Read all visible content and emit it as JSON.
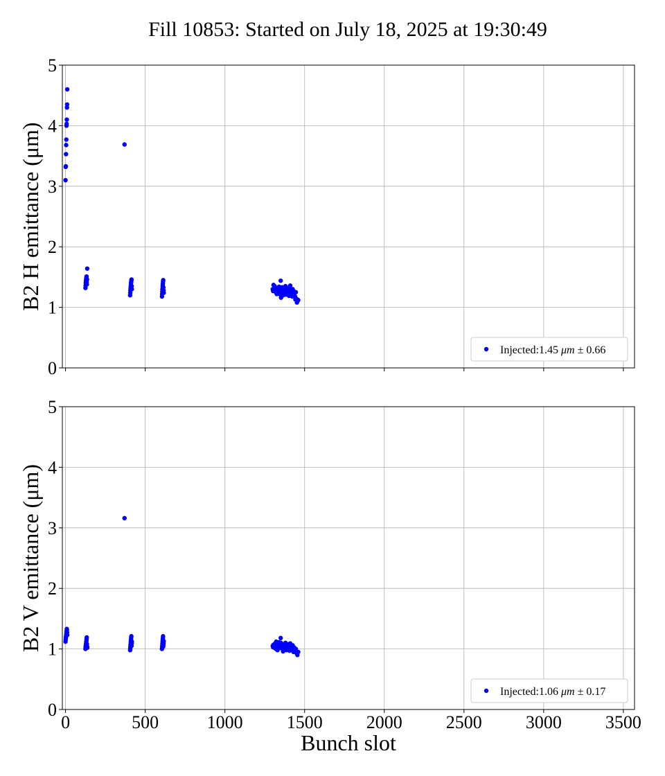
{
  "chart_data": {
    "type": "scatter",
    "title": "Fill 10853: Started on July 18, 2025 at 19:30:49",
    "xlabel": "Bunch slot",
    "xlim": [
      -20,
      3570
    ],
    "xticks": [
      0,
      500,
      1000,
      1500,
      2000,
      2500,
      3000,
      3500
    ],
    "point_color": "#0000ff",
    "panels": [
      {
        "ylabel": "B2 H emittance (μm)",
        "ylim": [
          0,
          5
        ],
        "yticks": [
          0,
          1,
          2,
          3,
          4,
          5
        ],
        "legend": {
          "label_prefix": "Injected:",
          "mean": "1.45",
          "unit": "μm",
          "pm": "±",
          "std": "0.66",
          "position": "lower right"
        },
        "series": [
          {
            "x": [
              0,
              1,
              2,
              3,
              4,
              5,
              6,
              7,
              8,
              9,
              10,
              11,
              125,
              126,
              127,
              128,
              129,
              130,
              131,
              132,
              133,
              134,
              135,
              136,
              370,
              405,
              406,
              407,
              408,
              409,
              410,
              411,
              412,
              413,
              414,
              415,
              416,
              605,
              606,
              607,
              608,
              609,
              610,
              611,
              612,
              613,
              614,
              615,
              616,
              1300,
              1305,
              1310,
              1315,
              1320,
              1325,
              1330,
              1335,
              1340,
              1345,
              1350,
              1355,
              1360,
              1365,
              1370,
              1375,
              1380,
              1385,
              1390,
              1395,
              1400,
              1405,
              1410,
              1415,
              1420,
              1425,
              1430,
              1435,
              1440,
              1445,
              1450,
              1455,
              1460,
              1302,
              1312,
              1322,
              1332,
              1342,
              1352,
              1362,
              1372,
              1382,
              1392,
              1402,
              1412,
              1422,
              1432,
              1442,
              1452
            ],
            "y": [
              3.1,
              3.32,
              3.33,
              3.53,
              3.68,
              3.77,
              4.0,
              4.03,
              4.1,
              4.3,
              4.35,
              4.6,
              1.32,
              1.36,
              1.4,
              1.43,
              1.45,
              1.47,
              1.49,
              1.51,
              1.42,
              1.38,
              1.46,
              1.64,
              3.69,
              1.2,
              1.24,
              1.28,
              1.31,
              1.34,
              1.37,
              1.4,
              1.42,
              1.44,
              1.46,
              1.35,
              1.3,
              1.18,
              1.22,
              1.26,
              1.3,
              1.34,
              1.37,
              1.4,
              1.43,
              1.45,
              1.33,
              1.28,
              1.24,
              1.3,
              1.37,
              1.28,
              1.33,
              1.25,
              1.22,
              1.3,
              1.27,
              1.34,
              1.31,
              1.44,
              1.26,
              1.33,
              1.2,
              1.29,
              1.25,
              1.35,
              1.22,
              1.3,
              1.27,
              1.32,
              1.24,
              1.36,
              1.21,
              1.28,
              1.3,
              1.23,
              1.26,
              1.18,
              1.25,
              1.14,
              1.1,
              1.12,
              1.27,
              1.35,
              1.3,
              1.24,
              1.22,
              1.16,
              1.28,
              1.31,
              1.21,
              1.26,
              1.19,
              1.29,
              1.18,
              1.22,
              1.13,
              1.08
            ]
          }
        ]
      },
      {
        "ylabel": "B2 V emittance (μm)",
        "ylim": [
          0,
          5
        ],
        "yticks": [
          0,
          1,
          2,
          3,
          4,
          5
        ],
        "legend": {
          "label_prefix": "Injected:",
          "mean": "1.06",
          "unit": "μm",
          "pm": "±",
          "std": "0.17",
          "position": "lower right"
        },
        "series": [
          {
            "x": [
              0,
              1,
              2,
              3,
              4,
              5,
              6,
              7,
              8,
              9,
              10,
              11,
              125,
              126,
              127,
              128,
              129,
              130,
              131,
              132,
              133,
              134,
              135,
              136,
              370,
              405,
              406,
              407,
              408,
              409,
              410,
              411,
              412,
              413,
              414,
              415,
              416,
              605,
              606,
              607,
              608,
              609,
              610,
              611,
              612,
              613,
              614,
              615,
              616,
              1300,
              1305,
              1310,
              1315,
              1320,
              1325,
              1330,
              1335,
              1340,
              1345,
              1350,
              1355,
              1360,
              1365,
              1370,
              1375,
              1380,
              1385,
              1390,
              1395,
              1400,
              1405,
              1410,
              1415,
              1420,
              1425,
              1430,
              1435,
              1440,
              1445,
              1450,
              1455,
              1460,
              1302,
              1312,
              1322,
              1332,
              1342,
              1352,
              1362,
              1372,
              1382,
              1392,
              1402,
              1412,
              1422,
              1432,
              1442,
              1452
            ],
            "y": [
              1.12,
              1.15,
              1.18,
              1.2,
              1.22,
              1.25,
              1.28,
              1.3,
              1.33,
              1.31,
              1.27,
              1.23,
              1.0,
              1.03,
              1.05,
              1.07,
              1.09,
              1.11,
              1.13,
              1.16,
              1.19,
              1.08,
              1.04,
              1.02,
              3.16,
              0.98,
              1.01,
              1.04,
              1.07,
              1.1,
              1.13,
              1.16,
              1.19,
              1.21,
              1.05,
              1.09,
              1.12,
              1.0,
              1.03,
              1.06,
              1.09,
              1.12,
              1.15,
              1.18,
              1.21,
              1.04,
              1.07,
              1.1,
              1.13,
              1.05,
              1.07,
              1.02,
              1.09,
              1.0,
              1.04,
              0.98,
              1.06,
              1.11,
              1.03,
              1.18,
              1.01,
              1.08,
              0.96,
              1.05,
              1.0,
              1.1,
              0.98,
              1.04,
              1.07,
              1.01,
              0.97,
              1.09,
              1.03,
              0.99,
              1.06,
              0.95,
              1.02,
              0.97,
              1.0,
              0.93,
              0.9,
              0.95,
              1.03,
              1.08,
              1.12,
              1.0,
              1.06,
              1.1,
              1.02,
              1.07,
              0.99,
              1.04,
              1.08,
              1.01,
              0.98,
              1.03,
              0.96,
              0.92
            ]
          }
        ]
      }
    ]
  }
}
